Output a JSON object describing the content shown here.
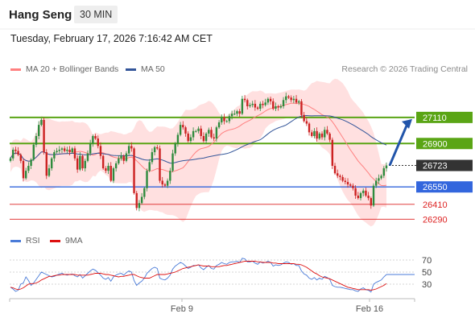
{
  "header": {
    "instrument": "Hang Seng",
    "timeframe": "30 MIN",
    "datetime": "Tuesday, February 17, 2026 7:16:42 AM CET"
  },
  "legend": {
    "ma20": "MA 20 + Bollinger Bands",
    "ma50": "MA 50",
    "credit": "Research © 2026 Trading Central"
  },
  "colors": {
    "green": "#5aa515",
    "blue": "#3366dd",
    "red": "#dd2222",
    "band": "#ffd6d6",
    "ma20": "#ff8080",
    "ma50": "#335599",
    "candle_up": "#2e8b3d",
    "candle_down": "#cc2222",
    "rsi": "#4a7bd8",
    "rsi_ma": "#dd1111",
    "current": "#333333"
  },
  "chart_data": [
    {
      "type": "candlestick",
      "x_ticks": [
        "Feb 9",
        "Feb 16"
      ],
      "ylim": [
        26240,
        27440
      ],
      "levels": [
        {
          "value": 27110,
          "label": "27110",
          "kind": "resistance"
        },
        {
          "value": 26900,
          "label": "26900",
          "kind": "resistance"
        },
        {
          "value": 26723,
          "label": "26723",
          "kind": "current"
        },
        {
          "value": 26550,
          "label": "26550",
          "kind": "support"
        },
        {
          "value": 26410,
          "label": "26410",
          "kind": "support-minor"
        },
        {
          "value": 26290,
          "label": "26290",
          "kind": "support-minor"
        }
      ],
      "forecast": {
        "from": 26723,
        "to": 27110
      },
      "close": [
        26780,
        26850,
        26840,
        26810,
        26760,
        26620,
        26680,
        26720,
        26770,
        26890,
        26960,
        27050,
        27090,
        26830,
        26640,
        26700,
        26780,
        26830,
        26840,
        26850,
        26860,
        26840,
        26850,
        26830,
        26860,
        26780,
        26690,
        26800,
        26700,
        26760,
        26820,
        26900,
        26960,
        26940,
        26880,
        26800,
        26700,
        26680,
        26720,
        26600,
        26700,
        26740,
        26780,
        26800,
        26760,
        26820,
        26880,
        26860,
        26500,
        26380,
        26420,
        26470,
        26540,
        26680,
        26750,
        26830,
        26870,
        26860,
        26600,
        26570,
        26560,
        26600,
        26680,
        26820,
        26900,
        26970,
        27050,
        27030,
        26980,
        26920,
        26950,
        27000,
        27000,
        27020,
        26960,
        26920,
        26980,
        27010,
        26950,
        26940,
        27030,
        27070,
        27110,
        27080,
        27080,
        27120,
        27140,
        27140,
        27160,
        27140,
        27260,
        27250,
        27200,
        27210,
        27220,
        27190,
        27180,
        27220,
        27210,
        27230,
        27260,
        27240,
        27180,
        27200,
        27190,
        27200,
        27250,
        27280,
        27270,
        27250,
        27260,
        27230,
        27240,
        27130,
        27080,
        27060,
        26990,
        26960,
        27000,
        26940,
        26980,
        26950,
        27010,
        26980,
        26930,
        26720,
        26660,
        26640,
        26630,
        26600,
        26590,
        26570,
        26560,
        26540,
        26480,
        26460,
        26500,
        26520,
        26480,
        26460,
        26400,
        26560,
        26600,
        26620,
        26640,
        26700,
        26723
      ]
    },
    {
      "type": "line",
      "name": "RSI",
      "levels": [
        70,
        50,
        30
      ],
      "ylim": [
        10,
        82
      ],
      "values": [
        25,
        22,
        18,
        20,
        30,
        32,
        42,
        36,
        28,
        32,
        38,
        44,
        50,
        48,
        46,
        44,
        42,
        43,
        45,
        47,
        48,
        46,
        45,
        46,
        47,
        44,
        42,
        46,
        40,
        44,
        48,
        52,
        55,
        53,
        49,
        45,
        40,
        38,
        41,
        35,
        42,
        45,
        47,
        48,
        45,
        49,
        52,
        50,
        36,
        28,
        32,
        35,
        40,
        48,
        52,
        56,
        58,
        56,
        40,
        38,
        37,
        40,
        45,
        55,
        60,
        63,
        66,
        64,
        60,
        56,
        58,
        61,
        61,
        62,
        57,
        54,
        58,
        61,
        56,
        55,
        61,
        63,
        66,
        64,
        63,
        66,
        67,
        67,
        68,
        66,
        73,
        72,
        67,
        67,
        68,
        65,
        63,
        67,
        65,
        66,
        68,
        66,
        60,
        62,
        61,
        62,
        65,
        67,
        66,
        63,
        64,
        61,
        61,
        52,
        47,
        45,
        40,
        38,
        41,
        37,
        40,
        38,
        43,
        41,
        38,
        28,
        26,
        25,
        25,
        24,
        23,
        22,
        21,
        21,
        19,
        18,
        22,
        24,
        21,
        20,
        17,
        30,
        33,
        35,
        37,
        42,
        46
      ],
      "ma9": [
        25,
        24,
        22,
        21,
        22,
        24,
        27,
        30,
        31,
        31,
        32,
        34,
        37,
        39,
        41,
        43,
        43,
        44,
        45,
        45,
        46,
        46,
        46,
        46,
        46,
        46,
        45,
        45,
        45,
        45,
        45,
        46,
        47,
        48,
        48,
        48,
        47,
        46,
        46,
        45,
        44,
        43,
        42,
        43,
        43,
        44,
        45,
        46,
        46,
        44,
        42,
        41,
        40,
        40,
        40,
        42,
        44,
        46,
        46,
        46,
        46,
        47,
        48,
        49,
        50,
        52,
        54,
        56,
        57,
        58,
        59,
        60,
        61,
        62,
        61,
        60,
        60,
        60,
        59,
        59,
        59,
        59,
        60,
        61,
        61,
        62,
        63,
        64,
        65,
        66,
        67,
        68,
        68,
        68,
        68,
        68,
        67,
        67,
        66,
        66,
        66,
        66,
        65,
        65,
        64,
        64,
        64,
        64,
        64,
        64,
        64,
        63,
        63,
        62,
        60,
        58,
        55,
        52,
        49,
        47,
        44,
        42,
        41,
        40,
        39,
        37,
        35,
        33,
        31,
        29,
        27,
        25,
        24,
        23,
        22,
        21,
        21,
        21,
        21,
        21,
        20,
        21,
        22,
        24,
        26,
        28,
        31
      ]
    }
  ]
}
